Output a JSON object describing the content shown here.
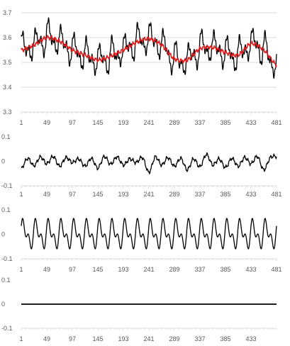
{
  "chart_data": [
    {
      "type": "line",
      "title": "",
      "x_tick_labels": [
        "1",
        "49",
        "97",
        "145",
        "193",
        "241",
        "289",
        "337",
        "385",
        "433",
        "481"
      ],
      "x_range": [
        1,
        481
      ],
      "ylim": [
        3.3,
        3.7
      ],
      "y_ticks": [
        3.3,
        3.4,
        3.5,
        3.6,
        3.7
      ],
      "y_tick_labels": [
        "3.3",
        "3.4",
        "3.5",
        "3.6",
        "3.7"
      ],
      "grid": true,
      "series": [
        {
          "color": "#000000",
          "model": {
            "kind": "seasonal_plus_trend",
            "period": 24,
            "seasonal_amplitude": 0.068
          },
          "x": [
            1,
            25,
            49,
            73,
            97,
            121,
            145,
            169,
            193,
            217,
            241,
            265,
            289,
            313,
            337,
            361,
            385,
            409,
            433,
            457,
            481
          ],
          "values": [
            3.55,
            3.57,
            3.6,
            3.585,
            3.55,
            3.53,
            3.51,
            3.525,
            3.55,
            3.58,
            3.595,
            3.57,
            3.515,
            3.51,
            3.555,
            3.56,
            3.54,
            3.53,
            3.575,
            3.55,
            3.49
          ]
        },
        {
          "color": "#e31a1c",
          "x": [
            1,
            25,
            49,
            73,
            97,
            121,
            145,
            169,
            193,
            217,
            241,
            265,
            289,
            313,
            337,
            361,
            385,
            409,
            433,
            457,
            481
          ],
          "values": [
            3.55,
            3.57,
            3.6,
            3.585,
            3.55,
            3.53,
            3.51,
            3.525,
            3.55,
            3.58,
            3.595,
            3.57,
            3.515,
            3.51,
            3.555,
            3.56,
            3.54,
            3.53,
            3.575,
            3.55,
            3.49
          ]
        }
      ]
    },
    {
      "type": "line",
      "title": "",
      "x_tick_labels": [
        "1",
        "49",
        "97",
        "145",
        "193",
        "241",
        "289",
        "337",
        "385",
        "433",
        "481"
      ],
      "x_range": [
        1,
        481
      ],
      "ylim": [
        -0.1,
        0.1
      ],
      "y_ticks": [
        -0.1,
        0,
        0.1
      ],
      "y_tick_labels": [
        "-0.1",
        "0",
        "0.1"
      ],
      "grid": false,
      "series": [
        {
          "color": "#000000",
          "x": [
            1,
            13,
            25,
            37,
            49,
            61,
            73,
            85,
            97,
            109,
            121,
            133,
            145,
            157,
            169,
            181,
            193,
            205,
            217,
            229,
            241,
            253,
            265,
            277,
            289,
            301,
            313,
            325,
            337,
            349,
            361,
            373,
            385,
            397,
            409,
            421,
            433,
            445,
            457,
            469,
            481
          ],
          "values": [
            -0.03,
            0.012,
            -0.018,
            0.018,
            -0.01,
            0.02,
            -0.02,
            0.015,
            -0.005,
            0.01,
            -0.02,
            0.012,
            -0.028,
            0.02,
            -0.012,
            0.018,
            -0.015,
            0.01,
            -0.005,
            0.015,
            -0.045,
            0.018,
            -0.015,
            0.015,
            -0.02,
            0.012,
            -0.035,
            0.01,
            -0.022,
            0.028,
            -0.015,
            0.01,
            -0.025,
            0.012,
            -0.02,
            0.016,
            -0.01,
            0.02,
            -0.035,
            0.015,
            0.02
          ]
        }
      ]
    },
    {
      "type": "line",
      "title": "",
      "x_tick_labels": [
        "1",
        "49",
        "97",
        "145",
        "193",
        "241",
        "289",
        "337",
        "385",
        "433",
        "481"
      ],
      "x_range": [
        1,
        481
      ],
      "ylim": [
        -0.1,
        0.1
      ],
      "y_ticks": [
        -0.1,
        0,
        0.1
      ],
      "y_tick_labels": [
        "-0.1",
        "0",
        "0.1"
      ],
      "grid": false,
      "series": [
        {
          "color": "#000000",
          "model": {
            "kind": "periodic",
            "period": 24,
            "amplitude": 0.068,
            "offset": 0
          }
        }
      ]
    },
    {
      "type": "line",
      "title": "",
      "x_tick_labels": [
        "1",
        "49",
        "97",
        "145",
        "193",
        "241",
        "289",
        "337",
        "385",
        "433"
      ],
      "x_range": [
        1,
        481
      ],
      "ylim": [
        -0.1,
        0.1
      ],
      "y_ticks": [
        -0.1,
        0,
        0.1
      ],
      "y_tick_labels": [
        "-0.1",
        "0",
        "0.1"
      ],
      "grid": false,
      "series": [
        {
          "color": "#000000",
          "x": [
            1,
            481
          ],
          "values": [
            0,
            0
          ]
        }
      ]
    }
  ]
}
